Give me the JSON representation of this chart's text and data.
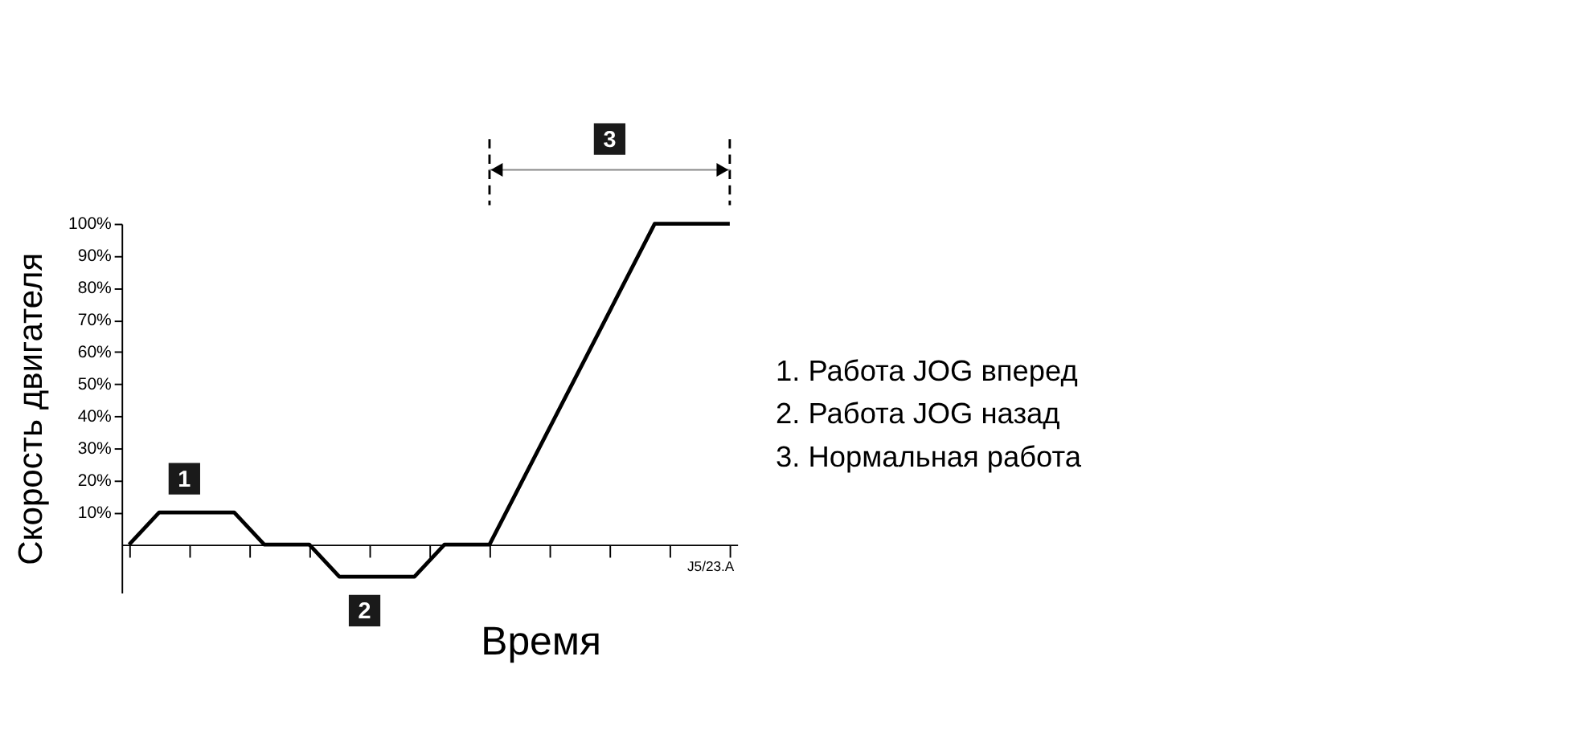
{
  "chart_data": {
    "type": "line",
    "categories": [
      null,
      null,
      null,
      null,
      null,
      null,
      null,
      null,
      null,
      null,
      null,
      null,
      null,
      null,
      null,
      null,
      null,
      null,
      null,
      null,
      null,
      null,
      null,
      null,
      null,
      null,
      null,
      null,
      null,
      null,
      null,
      null,
      null,
      null,
      null,
      null,
      null,
      null,
      null,
      null,
      null
    ],
    "series": [
      {
        "color": "#000000",
        "values": [
          0,
          null,
          10,
          null,
          null,
          null,
          null,
          10,
          null,
          0,
          null,
          null,
          0,
          null,
          -10,
          null,
          null,
          null,
          null,
          -10,
          null,
          0,
          null,
          null,
          0,
          null,
          null,
          null,
          null,
          null,
          null,
          null,
          null,
          null,
          null,
          100,
          null,
          null,
          null,
          null,
          100
        ]
      }
    ],
    "ylim": [
      -15,
      100
    ],
    "yticks": [
      {
        "value": 10,
        "label": "10%"
      },
      {
        "value": 20,
        "label": "20%"
      },
      {
        "value": 30,
        "label": "30%"
      },
      {
        "value": 40,
        "label": "40%"
      },
      {
        "value": 50,
        "label": "50%"
      },
      {
        "value": 60,
        "label": "60%"
      },
      {
        "value": 70,
        "label": "70%"
      },
      {
        "value": 80,
        "label": "80%"
      },
      {
        "value": 90,
        "label": "90%"
      },
      {
        "value": 100,
        "label": "100%"
      }
    ],
    "xlabel": "Время",
    "ylabel": "Скорость двигателя",
    "tick_labels": "y",
    "grid": false,
    "marker": "none",
    "line_style": "solid",
    "annotations": [
      "1",
      "2",
      "3",
      "1. Работа JOG вперед",
      "2. Работа JOG назад",
      "3. Нормальная работа",
      "J5/23.A"
    ]
  }
}
